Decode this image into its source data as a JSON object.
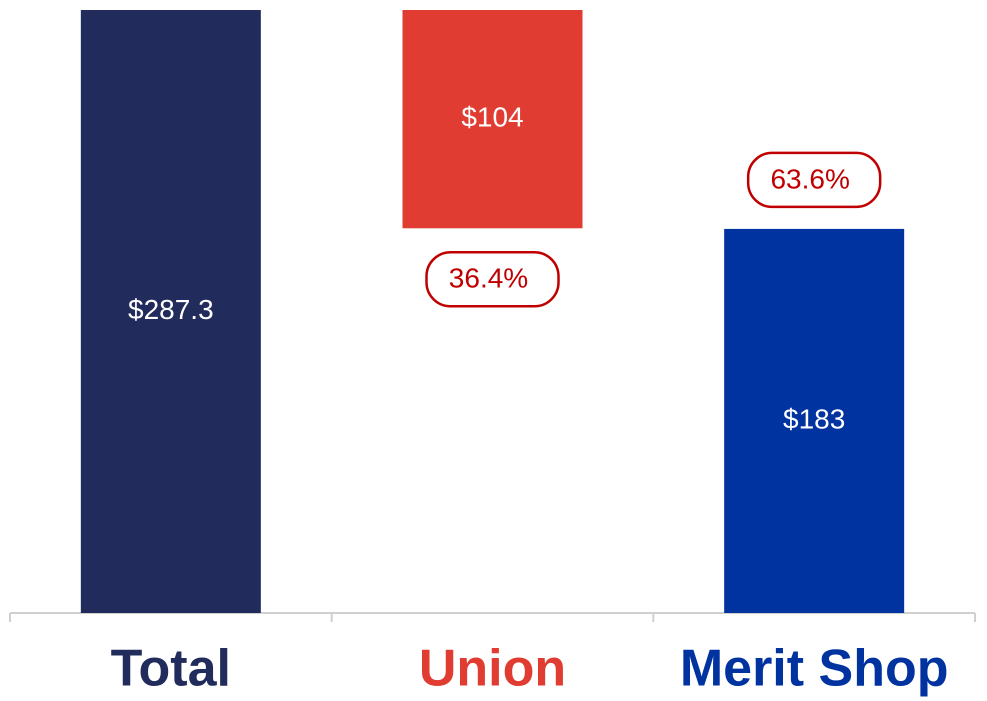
{
  "chart_data": {
    "type": "waterfall",
    "categories": [
      "Total",
      "Union",
      "Merit Shop"
    ],
    "measure": [
      "total",
      "decrease",
      "total"
    ],
    "values": [
      287.3,
      104,
      183
    ],
    "value_labels": [
      "$287.3",
      "$104",
      "$183"
    ],
    "shares": [
      null,
      36.4,
      63.6
    ],
    "share_labels": [
      null,
      "36.4%",
      "63.6%"
    ],
    "colors": [
      "#222c5c",
      "#e03c31",
      "#0033a0"
    ],
    "ylim": [
      0,
      287.3
    ]
  }
}
